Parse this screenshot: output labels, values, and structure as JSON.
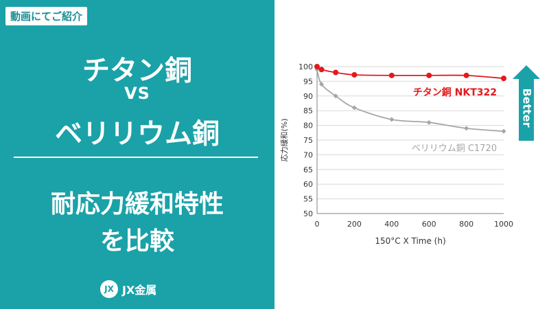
{
  "left_panel": {
    "tag": "動画にてご紹介",
    "title_line1": "チタン銅",
    "title_vs": "VS",
    "title_line2": "ベリリウム銅",
    "subtitle_line1": "耐応力緩和特性",
    "subtitle_line2": "を比較",
    "logo_mark": "JX",
    "logo_text": "JX金属"
  },
  "colors": {
    "teal": "#1aa2a8",
    "red_series": "#e3191c",
    "gray_series": "#a6a6a6"
  },
  "better_label": "Better",
  "chart_data": {
    "type": "scatter",
    "xlabel": "150°C X Time (h)",
    "ylabel": "応力緩和(%)",
    "xlim": [
      0,
      1000
    ],
    "ylim": [
      50,
      100
    ],
    "x_ticks": [
      0,
      200,
      400,
      600,
      800,
      1000
    ],
    "y_ticks": [
      50,
      55,
      60,
      65,
      70,
      75,
      80,
      85,
      90,
      95,
      100
    ],
    "grid": "horizontal",
    "series": [
      {
        "name": "チタン銅 NKT322",
        "color": "#e3191c",
        "x": [
          0,
          24,
          100,
          200,
          400,
          600,
          800,
          1000
        ],
        "y": [
          100,
          99,
          98,
          97.2,
          97,
          97,
          97,
          96
        ],
        "fit_curve": true
      },
      {
        "name": "ベリリウム銅 C1720",
        "color": "#a6a6a6",
        "x": [
          0,
          24,
          100,
          200,
          400,
          600,
          800,
          1000
        ],
        "y": [
          99,
          94,
          90,
          86,
          82,
          81,
          79,
          78
        ],
        "fit_curve": true
      }
    ]
  }
}
